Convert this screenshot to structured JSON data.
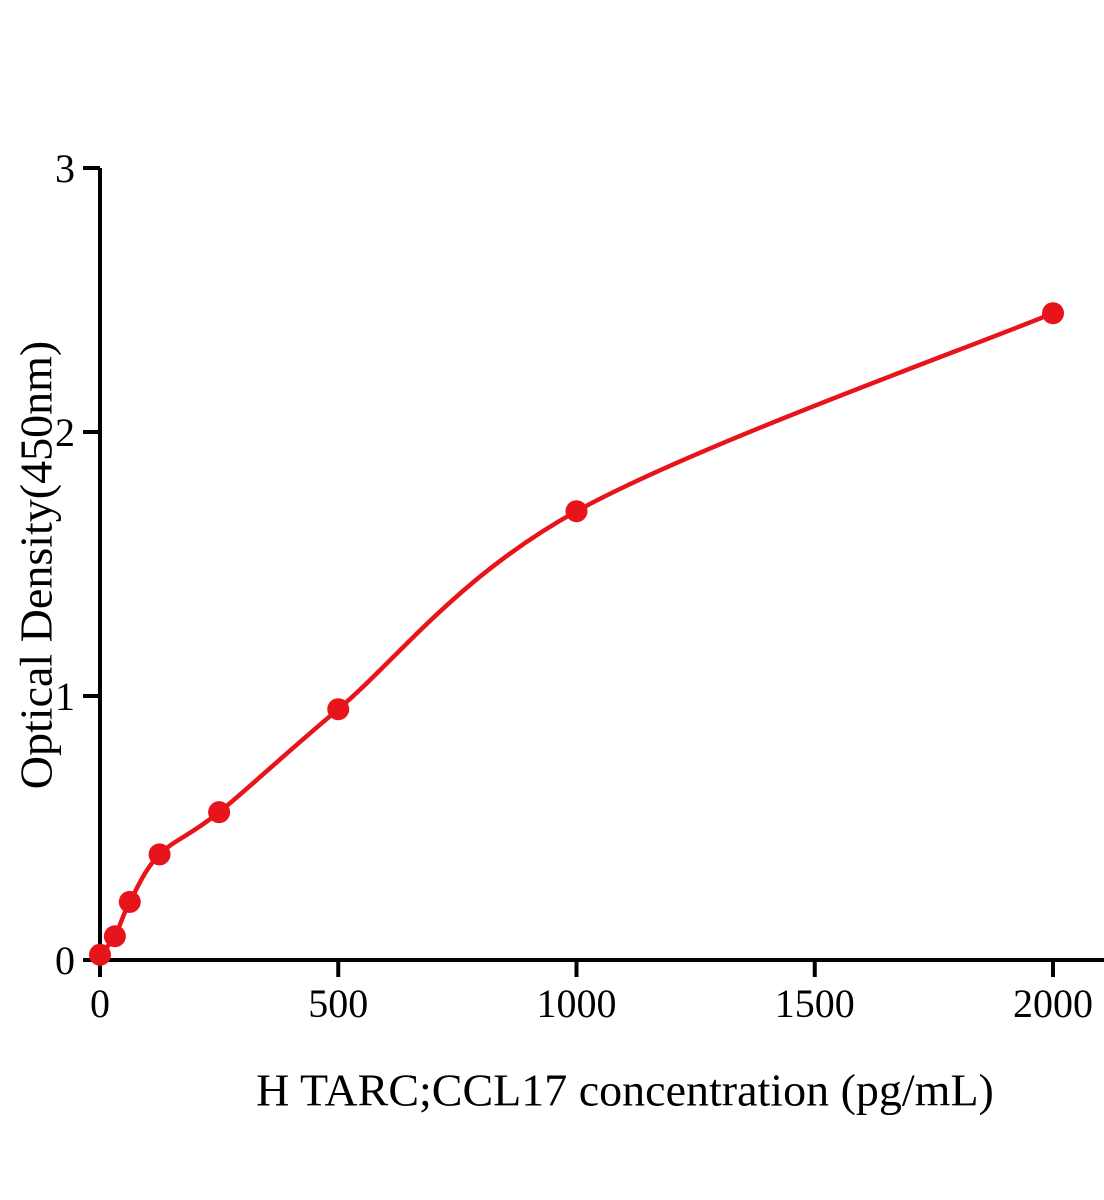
{
  "chart_data": {
    "type": "line",
    "title": "",
    "xlabel": "H TARC;CCL17 concentration (pg/mL)",
    "ylabel": "Optical Density(450nm)",
    "x": [
      0,
      31.25,
      62.5,
      125,
      250,
      500,
      1000,
      2000
    ],
    "y": [
      0.02,
      0.09,
      0.22,
      0.4,
      0.56,
      0.95,
      1.7,
      2.45
    ],
    "xlim": [
      0,
      2107
    ],
    "ylim": [
      0,
      3
    ],
    "x_ticks": [
      0,
      500,
      1000,
      1500,
      2000
    ],
    "y_ticks": [
      0,
      1,
      2,
      3
    ],
    "grid": false,
    "legend": null,
    "marker": "circle",
    "accent_color": "#e8141b",
    "axis_color": "#000000",
    "background_color": "#ffffff"
  }
}
